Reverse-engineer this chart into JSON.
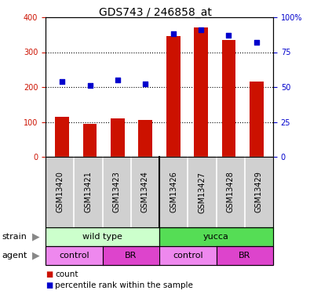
{
  "title": "GDS743 / 246858_at",
  "categories": [
    "GSM13420",
    "GSM13421",
    "GSM13423",
    "GSM13424",
    "GSM13426",
    "GSM13427",
    "GSM13428",
    "GSM13429"
  ],
  "counts": [
    115,
    95,
    110,
    105,
    345,
    370,
    335,
    215
  ],
  "percentiles": [
    54,
    51,
    55,
    52,
    88,
    91,
    87,
    82
  ],
  "ylim_left": [
    0,
    400
  ],
  "ylim_right": [
    0,
    100
  ],
  "yticks_left": [
    0,
    100,
    200,
    300,
    400
  ],
  "yticks_right": [
    0,
    25,
    50,
    75,
    100
  ],
  "bar_color": "#cc1100",
  "dot_color": "#0000cc",
  "strain_data": [
    {
      "text": "wild type",
      "start": 0,
      "end": 3,
      "color": "#ccffcc"
    },
    {
      "text": "yucca",
      "start": 4,
      "end": 7,
      "color": "#55dd55"
    }
  ],
  "agent_data": [
    {
      "text": "control",
      "start": 0,
      "end": 1,
      "color": "#ee88ee"
    },
    {
      "text": "BR",
      "start": 2,
      "end": 3,
      "color": "#dd44cc"
    },
    {
      "text": "control",
      "start": 4,
      "end": 5,
      "color": "#ee88ee"
    },
    {
      "text": "BR",
      "start": 6,
      "end": 7,
      "color": "#dd44cc"
    }
  ],
  "legend": [
    {
      "label": "count",
      "color": "#cc1100"
    },
    {
      "label": "percentile rank within the sample",
      "color": "#0000cc"
    }
  ],
  "row_labels": [
    "strain",
    "agent"
  ],
  "grid_lines": [
    100,
    200,
    300
  ],
  "title_fontsize": 10,
  "tick_fontsize": 7,
  "label_fontsize": 8,
  "annotation_fontsize": 8,
  "bar_width": 0.5
}
